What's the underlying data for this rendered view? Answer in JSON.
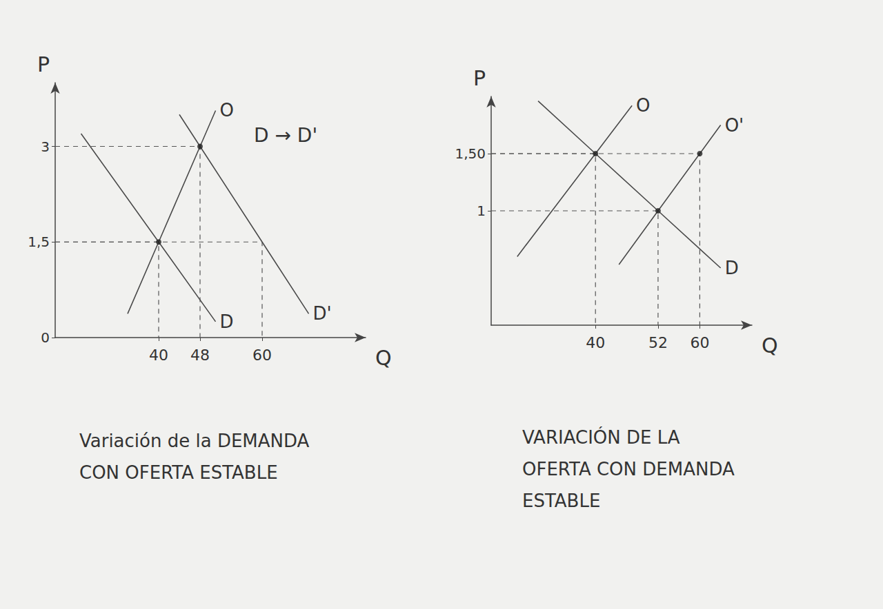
{
  "chart_data": [
    {
      "type": "line",
      "title": "Variación de la DEMANDA\nCON OFERTA ESTABLE",
      "x_label": "Q",
      "y_label": "P",
      "annotation": "D → D'",
      "xlim": [
        20,
        80
      ],
      "ylim": [
        0,
        4
      ],
      "xticks": [
        40,
        48,
        60
      ],
      "yticks": [
        0,
        {
          "value": 1.5,
          "label": "1,5"
        },
        3
      ],
      "grid": false,
      "series": [
        {
          "name": "O",
          "color": "#4a4a4a",
          "x": [
            34,
            40,
            48,
            51
          ],
          "values": [
            0.375,
            1.5,
            3,
            3.5625
          ]
        },
        {
          "name": "D",
          "color": "#4a4a4a",
          "x": [
            25,
            40,
            51
          ],
          "values": [
            3.2,
            1.5,
            0.25
          ]
        },
        {
          "name": "D'",
          "color": "#4a4a4a",
          "x": [
            44,
            48,
            60,
            69
          ],
          "values": [
            3.5,
            3,
            1.5,
            0.375
          ]
        }
      ],
      "guides": [
        {
          "x": 40,
          "y": 1.5,
          "marker": "dot"
        },
        {
          "x": 48,
          "y": 3,
          "marker": "dot"
        },
        {
          "x": 60,
          "y": 1.5
        }
      ]
    },
    {
      "type": "line",
      "title": "VARIACIÓN DE LA\nOFERTA CON DEMANDA\nESTABLE",
      "x_label": "Q",
      "y_label": "P",
      "xlim": [
        20,
        70
      ],
      "ylim": [
        0,
        2
      ],
      "xticks": [
        40,
        52,
        60
      ],
      "yticks": [
        1,
        {
          "value": 1.5,
          "label": "1,50"
        }
      ],
      "grid": false,
      "series": [
        {
          "name": "O",
          "color": "#4a4a4a",
          "x": [
            25,
            40,
            47
          ],
          "values": [
            0.6,
            1.5,
            1.92
          ]
        },
        {
          "name": "O'",
          "color": "#4a4a4a",
          "x": [
            44.5,
            52,
            60,
            64
          ],
          "values": [
            0.53,
            1,
            1.5,
            1.75
          ]
        },
        {
          "name": "D",
          "color": "#4a4a4a",
          "x": [
            29,
            40,
            52,
            64
          ],
          "values": [
            1.96,
            1.5,
            1,
            0.5
          ]
        }
      ],
      "guides": [
        {
          "x": 40,
          "y": 1.5,
          "marker": "dot"
        },
        {
          "x": 52,
          "y": 1,
          "marker": "dot"
        },
        {
          "x": 60,
          "y": 1.5,
          "marker": "dot"
        }
      ]
    }
  ]
}
